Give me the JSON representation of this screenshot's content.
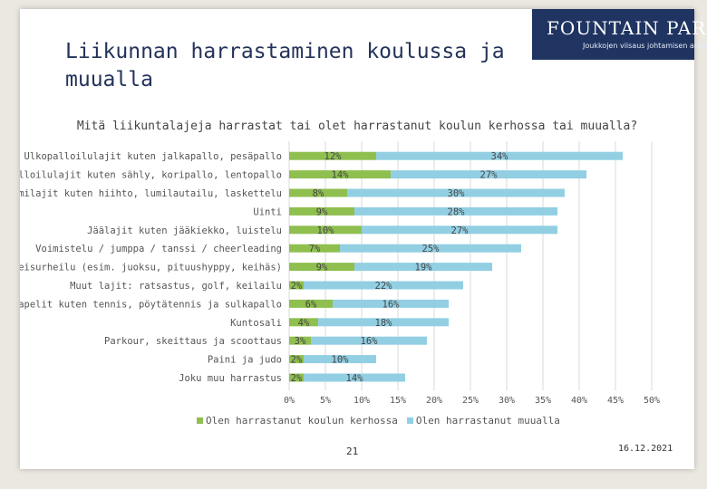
{
  "slide": {
    "title": "Liikunnan harrastaminen koulussa ja muualla",
    "logo_name": "FOUNTAIN PARK",
    "logo_tagline": "Joukkojen viisaus johtamisen arkeen",
    "page_number": "21",
    "date": "16.12.2021"
  },
  "colors": {
    "school": "#8fbf4f",
    "elsewhere": "#92cfe3",
    "grid": "#d9d9d9"
  },
  "chart_data": {
    "type": "bar",
    "orientation": "horizontal",
    "stacked": true,
    "title": "Mitä liikuntalajeja harrastat tai olet harrastanut koulun kerhossa tai muualla?",
    "categories": [
      "Ulkopalloilulajit kuten jalkapallo, pesäpallo",
      "Sisäpalloilulajit kuten sähly, koripallo, lentopallo",
      "Lumilajit kuten hiihto, lumilautailu, laskettelu",
      "Uinti",
      "Jäälajit kuten jääkiekko, luistelu",
      "Voimistelu / jumppa / tanssi / cheerleading",
      "Yleisurheilu (esim. juoksu, pituushyppy, keihäs)",
      "Muut lajit: ratsastus, golf, keilailu",
      "Mailapelit kuten tennis, pöytätennis ja sulkapallo",
      "Kuntosali",
      "Parkour, skeittaus ja scoottaus",
      "Paini ja judo",
      "Joku muu harrastus"
    ],
    "series": [
      {
        "name": "Olen harrastanut koulun kerhossa",
        "values": [
          12,
          14,
          8,
          9,
          10,
          7,
          9,
          2,
          6,
          4,
          3,
          2,
          2
        ],
        "labels": [
          "12%",
          "14%",
          "8%",
          "9%",
          "10%",
          "7%",
          "9%",
          "2%",
          "6%",
          "4%",
          "3%",
          "2%",
          "2%"
        ]
      },
      {
        "name": "Olen harrastanut muualla",
        "values": [
          34,
          27,
          30,
          28,
          27,
          25,
          19,
          22,
          16,
          18,
          16,
          10,
          14
        ],
        "labels": [
          "34%",
          "27%",
          "30%",
          "28%",
          "27%",
          "25%",
          "19%",
          "22%",
          "16%",
          "18%",
          "16%",
          "10%",
          "14%"
        ]
      }
    ],
    "xlim": [
      0,
      50
    ],
    "xticks": [
      "0%",
      "5%",
      "10%",
      "15%",
      "20%",
      "25%",
      "30%",
      "35%",
      "40%",
      "45%",
      "50%"
    ],
    "legend_position": "bottom"
  }
}
